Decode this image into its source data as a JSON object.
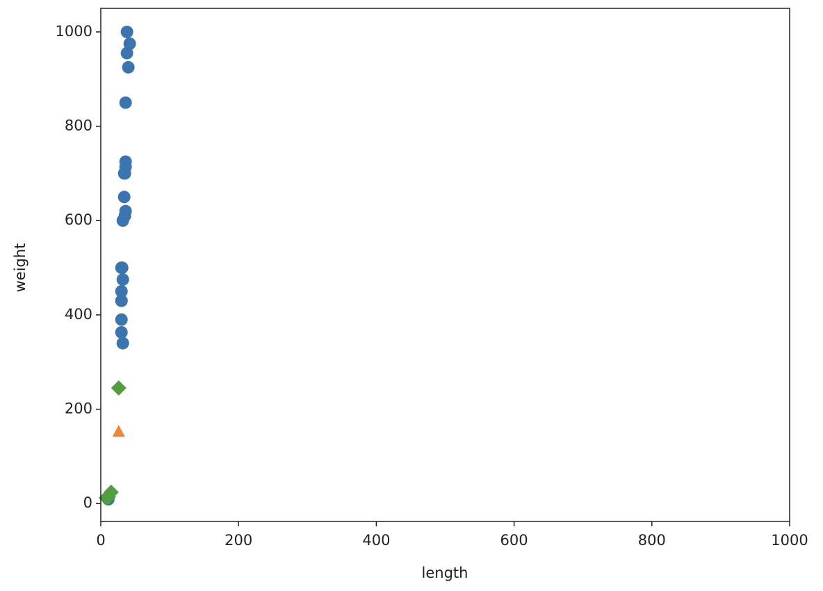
{
  "chart_data": {
    "type": "scatter",
    "x_label": "length",
    "y_label": "weight",
    "xlim": [
      0,
      1000
    ],
    "ylim": [
      -38,
      1050
    ],
    "xticks": [
      0,
      200,
      400,
      600,
      800,
      1000
    ],
    "yticks": [
      0,
      200,
      400,
      600,
      800,
      1000
    ],
    "grid": false,
    "series": [
      {
        "color": "#3a75af",
        "marker": "circle",
        "x": [
          38,
          42,
          38,
          40,
          36,
          36,
          36,
          35,
          34,
          34,
          36,
          35,
          32,
          31,
          30,
          32,
          30,
          30,
          30,
          30,
          30,
          32,
          11
        ],
        "y": [
          1000,
          975,
          955,
          925,
          850,
          725,
          714,
          700,
          700,
          650,
          620,
          610,
          600,
          500,
          500,
          475,
          450,
          430,
          430,
          390,
          363,
          340,
          9
        ]
      },
      {
        "color": "#ef8636",
        "marker": "triangle",
        "x": [
          26
        ],
        "y": [
          152
        ]
      },
      {
        "color": "#519e3e",
        "marker": "diamond",
        "x": [
          26,
          15,
          11,
          8
        ],
        "y": [
          245,
          24,
          14,
          12
        ]
      }
    ]
  }
}
